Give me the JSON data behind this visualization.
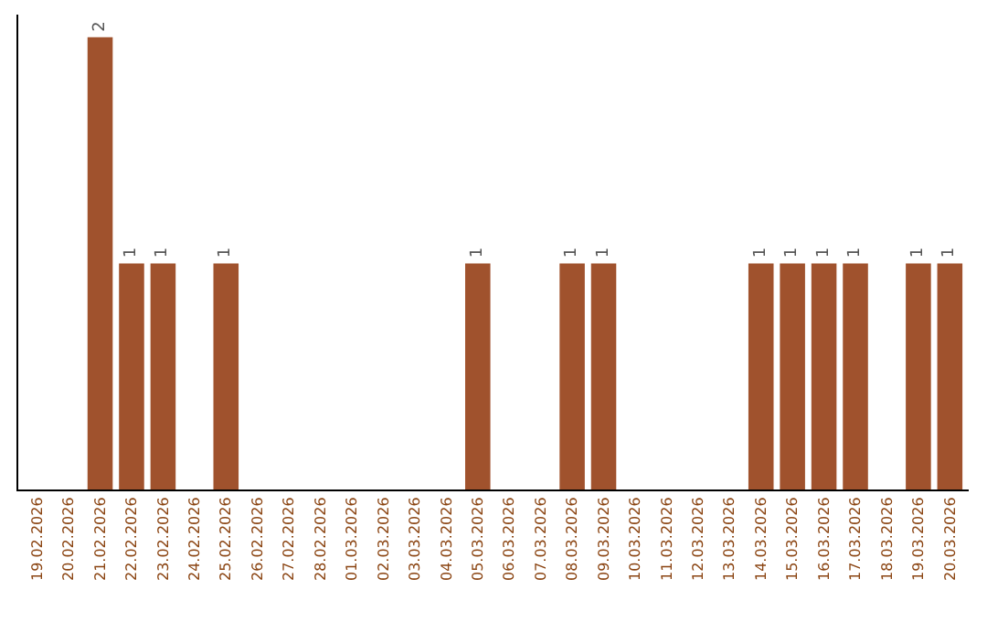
{
  "chart_data": {
    "type": "bar",
    "categories": [
      "19.02.2026",
      "20.02.2026",
      "21.02.2026",
      "22.02.2026",
      "23.02.2026",
      "24.02.2026",
      "25.02.2026",
      "26.02.2026",
      "27.02.2026",
      "28.02.2026",
      "01.03.2026",
      "02.03.2026",
      "03.03.2026",
      "04.03.2026",
      "05.03.2026",
      "06.03.2026",
      "07.03.2026",
      "08.03.2026",
      "09.03.2026",
      "10.03.2026",
      "11.03.2026",
      "12.03.2026",
      "13.03.2026",
      "14.03.2026",
      "15.03.2026",
      "16.03.2026",
      "17.03.2026",
      "18.03.2026",
      "19.03.2026",
      "20.03.2026"
    ],
    "values": [
      0,
      0,
      2,
      1,
      1,
      0,
      1,
      0,
      0,
      0,
      0,
      0,
      0,
      0,
      1,
      0,
      0,
      1,
      1,
      0,
      0,
      0,
      0,
      1,
      1,
      1,
      1,
      0,
      1,
      1
    ],
    "value_labels": [
      null,
      null,
      "2",
      "1",
      "1",
      null,
      "1",
      null,
      null,
      null,
      null,
      null,
      null,
      null,
      "1",
      null,
      null,
      "1",
      "1",
      null,
      null,
      null,
      null,
      "1",
      "1",
      "1",
      "1",
      null,
      "1",
      "1"
    ],
    "color": "#a0522d",
    "ylim": [
      0,
      2.1
    ],
    "tick_labels": "x",
    "legend": false
  }
}
